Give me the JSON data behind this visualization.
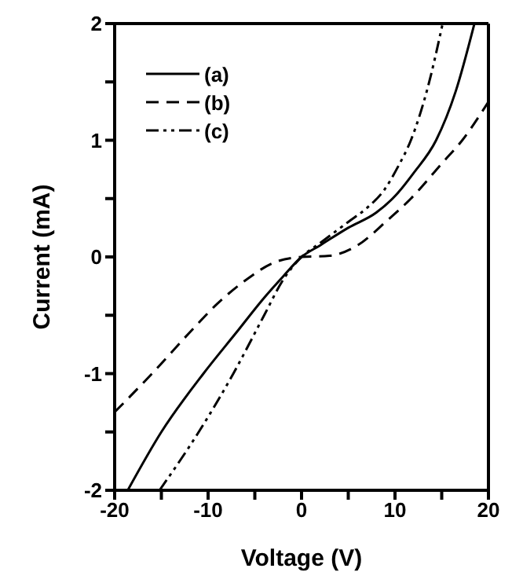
{
  "chart_data": {
    "type": "line",
    "xlabel": "Voltage (V)",
    "ylabel": "Current (mA)",
    "xlim": [
      -20,
      20
    ],
    "ylim": [
      -2,
      2
    ],
    "xticks": [
      -20,
      {
        "value": -15,
        "label": null
      },
      -10,
      {
        "value": -5,
        "label": null
      },
      0,
      {
        "value": 5,
        "label": null
      },
      10,
      {
        "value": 15,
        "label": null
      },
      20
    ],
    "yticks": [
      -2,
      {
        "value": -1.5,
        "label": null
      },
      -1,
      {
        "value": -0.5,
        "label": null
      },
      0,
      {
        "value": 0.5,
        "label": null
      },
      1,
      {
        "value": 1.5,
        "label": null
      },
      2
    ],
    "legend": "top left",
    "marker": "none",
    "series": [
      {
        "name": "(a)",
        "color": "#000000",
        "line_style": "solid",
        "x": [
          -18.6,
          -15,
          -10.5,
          -7,
          -4,
          -2,
          0,
          2,
          5,
          8,
          10.1,
          12,
          14.4,
          16.5,
          18.5
        ],
        "values": [
          -2,
          -1.5,
          -1,
          -0.65,
          -0.35,
          -0.17,
          0,
          0.1,
          0.25,
          0.38,
          0.53,
          0.72,
          1,
          1.42,
          2
        ]
      },
      {
        "name": "(b)",
        "color": "#000000",
        "line_style": "dashed",
        "x": [
          -20,
          -16,
          -12,
          -9,
          -6,
          -3,
          0,
          3,
          6,
          9,
          11.7,
          15,
          17.2,
          20
        ],
        "values": [
          -1.33,
          -1,
          -0.65,
          -0.4,
          -0.2,
          -0.05,
          0,
          0.01,
          0.1,
          0.3,
          0.5,
          0.8,
          1,
          1.33
        ]
      },
      {
        "name": "(c)",
        "color": "#000000",
        "line_style": "dashdot",
        "x": [
          -15.2,
          -11,
          -7.3,
          -4,
          -2,
          0,
          2,
          5,
          7,
          8.9,
          10.3,
          11.7,
          13.5,
          15.1
        ],
        "values": [
          -2,
          -1.5,
          -1,
          -0.5,
          -0.2,
          0,
          0.12,
          0.3,
          0.42,
          0.58,
          0.77,
          1,
          1.45,
          2
        ]
      }
    ]
  }
}
